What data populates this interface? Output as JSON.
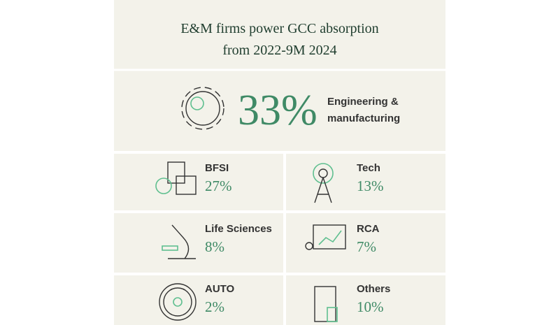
{
  "title": [
    "E&M firms power GCC absorption",
    "from 2022-9M 2024"
  ],
  "headline": {
    "value": "33%",
    "label": [
      "Engineering &",
      "manufacturing"
    ]
  },
  "sectors": [
    {
      "label": "BFSI",
      "value": "27%"
    },
    {
      "label": "Tech",
      "value": "13%"
    },
    {
      "label": "Life Sciences",
      "value": "8%"
    },
    {
      "label": "RCA",
      "value": "7%"
    },
    {
      "label": "AUTO",
      "value": "2%"
    },
    {
      "label": "Others",
      "value": "10%"
    }
  ]
}
